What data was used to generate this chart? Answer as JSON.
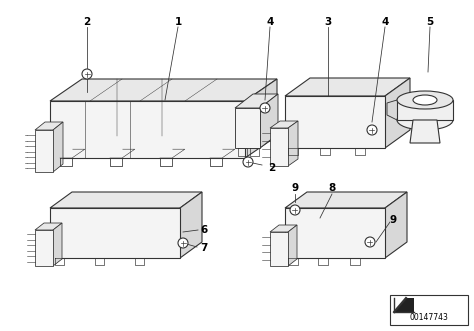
{
  "bg_color": "#ffffff",
  "line_color": "#333333",
  "label_color": "#000000",
  "figsize": [
    4.74,
    3.31
  ],
  "dpi": 100,
  "watermark": "00147743"
}
